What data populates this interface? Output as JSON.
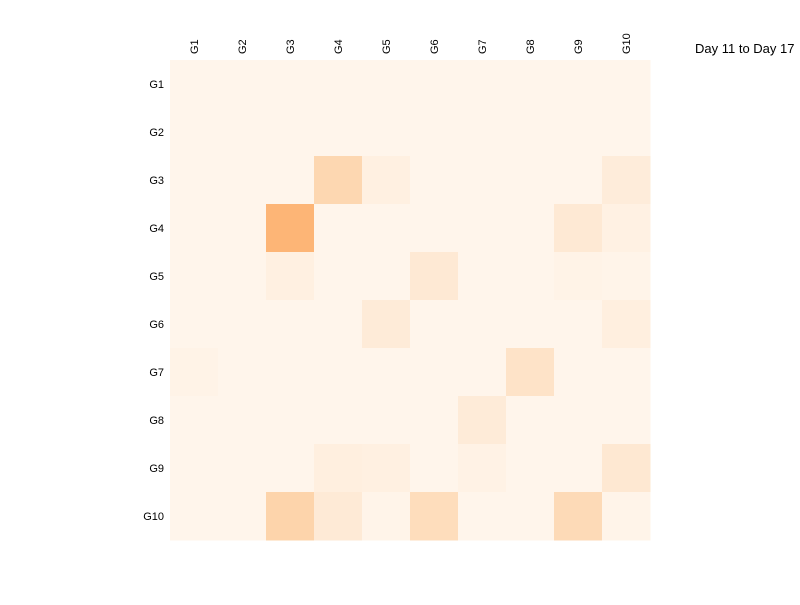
{
  "chart_data": {
    "type": "heatmap",
    "title": "Day 11 to Day 17",
    "xlabel": "",
    "ylabel": "",
    "x_categories": [
      "G1",
      "G2",
      "G3",
      "G4",
      "G5",
      "G6",
      "G7",
      "G8",
      "G9",
      "G10"
    ],
    "y_categories": [
      "G1",
      "G2",
      "G3",
      "G4",
      "G5",
      "G6",
      "G7",
      "G8",
      "G9",
      "G10"
    ],
    "colormap": "Oranges",
    "color_low": "#fff5eb",
    "color_high": "#7f2704",
    "vmin": 0,
    "vmax": 1,
    "x_tick_position": "top",
    "x_tick_rotation": "vertical",
    "grid": false,
    "colorbar": false,
    "values": [
      [
        0.0,
        0.0,
        0.0,
        0.0,
        0.0,
        0.0,
        0.0,
        0.0,
        0.0,
        0.0
      ],
      [
        0.0,
        0.0,
        0.0,
        0.0,
        0.0,
        0.0,
        0.0,
        0.0,
        0.0,
        0.0
      ],
      [
        0.0,
        0.0,
        0.0,
        0.25,
        0.05,
        0.0,
        0.0,
        0.0,
        0.0,
        0.09
      ],
      [
        0.0,
        0.0,
        0.42,
        0.0,
        0.0,
        0.0,
        0.0,
        0.0,
        0.12,
        0.04
      ],
      [
        0.0,
        0.0,
        0.05,
        0.0,
        0.0,
        0.12,
        0.0,
        0.0,
        0.02,
        0.01
      ],
      [
        0.0,
        0.0,
        0.0,
        0.0,
        0.1,
        0.0,
        0.0,
        0.0,
        0.0,
        0.06
      ],
      [
        0.02,
        0.0,
        0.0,
        0.0,
        0.0,
        0.0,
        0.0,
        0.17,
        0.0,
        0.0
      ],
      [
        0.0,
        0.0,
        0.0,
        0.0,
        0.0,
        0.0,
        0.1,
        0.0,
        0.0,
        0.0
      ],
      [
        0.0,
        0.0,
        0.0,
        0.06,
        0.05,
        0.0,
        0.03,
        0.0,
        0.0,
        0.13
      ],
      [
        0.0,
        0.0,
        0.27,
        0.11,
        0.01,
        0.21,
        0.0,
        0.0,
        0.23,
        0.01
      ]
    ]
  }
}
